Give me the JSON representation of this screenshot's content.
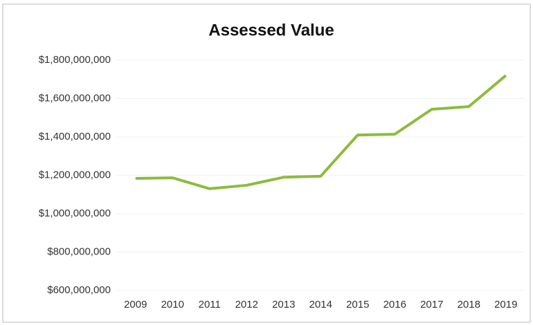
{
  "chart_data": {
    "type": "line",
    "title": "Assessed Value",
    "categories": [
      "2009",
      "2010",
      "2011",
      "2012",
      "2013",
      "2014",
      "2015",
      "2016",
      "2017",
      "2018",
      "2019"
    ],
    "series": [
      {
        "name": "Assessed Value",
        "color": "#8dbb3e",
        "values": [
          1184000000,
          1187000000,
          1130000000,
          1148000000,
          1190000000,
          1195000000,
          1410000000,
          1414000000,
          1544000000,
          1558000000,
          1720000000
        ]
      }
    ],
    "ylim": [
      600000000,
      1800000000
    ],
    "yticks": [
      {
        "value": 600000000,
        "label": "$600,000,000"
      },
      {
        "value": 800000000,
        "label": "$800,000,000"
      },
      {
        "value": 1000000000,
        "label": "$1,000,000,000"
      },
      {
        "value": 1200000000,
        "label": "$1,200,000,000"
      },
      {
        "value": 1400000000,
        "label": "$1,400,000,000"
      },
      {
        "value": 1600000000,
        "label": "$1,600,000,000"
      },
      {
        "value": 1800000000,
        "label": "$1,800,000,000"
      }
    ],
    "grid": true
  }
}
